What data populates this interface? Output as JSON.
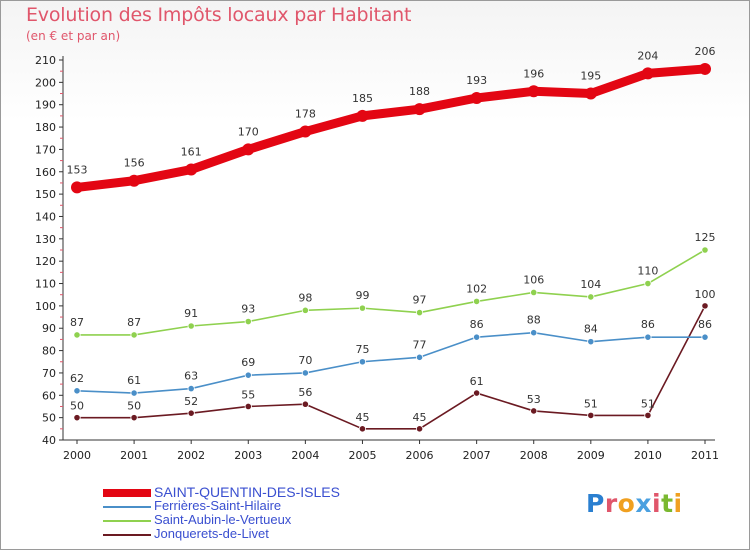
{
  "header": {
    "title": "Evolution des Impôts locaux par Habitant",
    "subtitle": "(en € et par an)"
  },
  "logo": {
    "text": "Proxiti",
    "colors": [
      "#2a7fd0",
      "#e0566b",
      "#f0a020",
      "#4aa0e0",
      "#e0566b",
      "#7ab830",
      "#f0a020"
    ]
  },
  "chart_data": {
    "type": "line",
    "title": "Evolution des Impôts locaux par Habitant",
    "subtitle": "(en € et par an)",
    "xlabel": "",
    "ylabel": "",
    "x": [
      "2000",
      "2001",
      "2002",
      "2003",
      "2004",
      "2005",
      "2006",
      "2007",
      "2008",
      "2009",
      "2010",
      "2011"
    ],
    "ylim": [
      40,
      210
    ],
    "yticks": [
      40,
      50,
      60,
      70,
      80,
      90,
      100,
      110,
      120,
      130,
      140,
      150,
      160,
      170,
      180,
      190,
      200,
      210
    ],
    "grid": false,
    "legend_position": "bottom-left",
    "series": [
      {
        "name": "SAINT-QUENTIN-DES-ISLES",
        "color": "#e30613",
        "values": [
          153,
          156,
          161,
          170,
          178,
          185,
          188,
          193,
          196,
          195,
          204,
          206
        ]
      },
      {
        "name": "Ferrières-Saint-Hilaire",
        "color": "#4a8fc8",
        "values": [
          62,
          61,
          63,
          69,
          70,
          75,
          77,
          86,
          88,
          84,
          86,
          86
        ]
      },
      {
        "name": "Saint-Aubin-le-Vertueux",
        "color": "#8fd14f",
        "values": [
          87,
          87,
          91,
          93,
          98,
          99,
          97,
          102,
          106,
          104,
          110,
          125
        ]
      },
      {
        "name": "Jonquerets-de-Livet",
        "color": "#6b1a22",
        "values": [
          50,
          50,
          52,
          55,
          56,
          45,
          45,
          61,
          53,
          51,
          51,
          100
        ]
      }
    ]
  }
}
